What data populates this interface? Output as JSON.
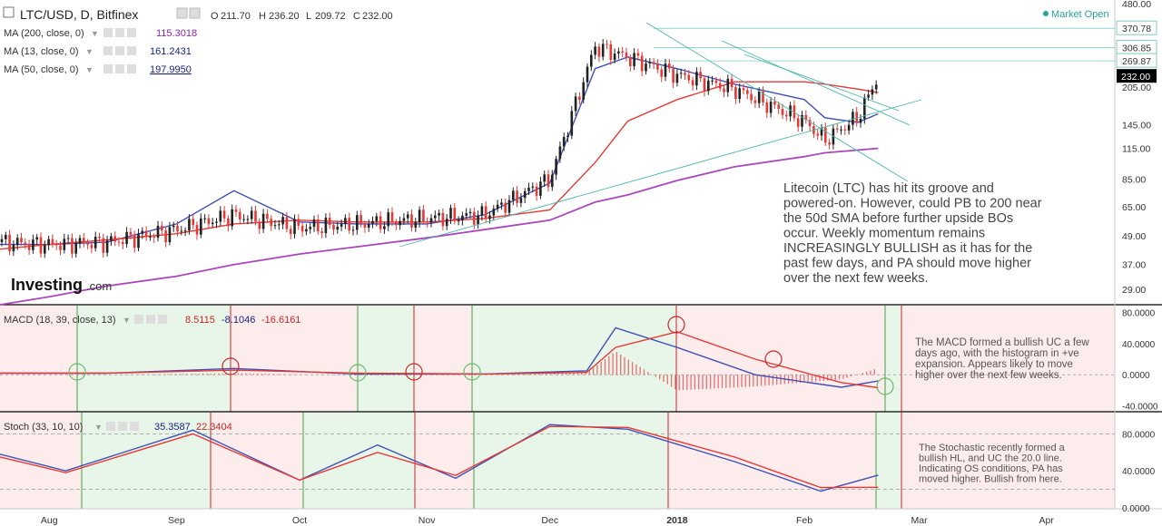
{
  "header": {
    "symbol": "LTC/USD, D, Bitfinex",
    "open_label": "O",
    "open": "211.70",
    "high_label": "H",
    "high": "236.20",
    "low_label": "L",
    "low": "209.72",
    "close_label": "C",
    "close": "232.00",
    "market_status": "Market Open"
  },
  "indicators": [
    {
      "label": "MA (200, close, 0)",
      "value": "115.3018",
      "color": "#8e24aa"
    },
    {
      "label": "MA (13, close, 0)",
      "value": "161.2431",
      "color": "#1a237e"
    },
    {
      "label": "MA (50, close, 0)",
      "value": "197.9950",
      "color": "#1a237e"
    }
  ],
  "logo": {
    "brand": "Investing",
    "suffix": ".com"
  },
  "price_axis_ticks": [
    "480.00",
    "370.78",
    "306.85",
    "269.87",
    "232.00",
    "205.00",
    "145.00",
    "115.00",
    "85.00",
    "65.00",
    "49.00",
    "37.00",
    "29.00"
  ],
  "macd": {
    "label": "MACD (18, 39, close, 13)",
    "values": [
      "8.5115",
      "-8.1046",
      "-16.6161"
    ],
    "axis_ticks": [
      "80.0000",
      "40.0000",
      "0.0000",
      "-40.0000"
    ],
    "note": "The MACD formed a bullish UC a few days ago, with the histogram in +ve expansion. Appears likely to move higher over the next few weeks."
  },
  "stoch": {
    "label": "Stoch (33, 10, 10)",
    "values": [
      "35.3587",
      "22.3404"
    ],
    "axis_ticks": [
      "80.0000",
      "40.0000",
      "0.0000"
    ],
    "note": "The Stochastic recently formed a bullish HL, and UC the 20.0 line. Indicating OS conditions, PA has moved higher. Bullish from here."
  },
  "main_note": "Litecoin (LTC) has hit its groove and powered-on. However, could PB to 200 near the 50d SMA before further upside BOs occur. Weekly momentum remains INCREASINGLY BULLISH as it has for the past few days, and PA should move higher over the next few weeks.",
  "time_axis": [
    "Aug",
    "Sep",
    "Oct",
    "Nov",
    "Dec",
    "2018",
    "Feb",
    "Mar",
    "Apr"
  ],
  "colors": {
    "up": "#222222",
    "down": "#e53935",
    "ma13": "#3f51b5",
    "ma50": "#e53935",
    "ma200": "#ab47bc",
    "bull_zone": "#e8f5e9",
    "bear_zone": "#fdecec",
    "last_price_bg": "#000000"
  },
  "chart_data": [
    {
      "type": "candlestick",
      "title": "LTC/USD, D, Bitfinex",
      "scale": "log",
      "ylim": [
        25,
        480
      ],
      "x": [
        "2017-07-20",
        "2017-08-01",
        "2017-08-15",
        "2017-09-01",
        "2017-09-15",
        "2017-10-01",
        "2017-10-15",
        "2017-11-01",
        "2017-11-15",
        "2017-12-01",
        "2017-12-12",
        "2017-12-20",
        "2018-01-01",
        "2018-01-15",
        "2018-02-01",
        "2018-02-06",
        "2018-02-14",
        "2018-02-19"
      ],
      "close": [
        46,
        45,
        46,
        52,
        60,
        53,
        55,
        58,
        60,
        85,
        310,
        280,
        235,
        205,
        150,
        125,
        155,
        232
      ],
      "series": [
        {
          "name": "MA (13, close, 0)",
          "values": [
            45,
            45,
            46,
            55,
            76,
            56,
            55,
            55,
            60,
            82,
            250,
            280,
            250,
            215,
            185,
            155,
            148,
            161
          ]
        },
        {
          "name": "MA (50, close, 0)",
          "values": [
            43,
            45,
            47,
            50,
            55,
            57,
            56,
            56,
            58,
            63,
            100,
            150,
            185,
            220,
            220,
            215,
            205,
            198
          ]
        },
        {
          "name": "MA (200, close, 0)",
          "values": [
            25,
            27,
            30,
            33,
            37,
            41,
            44,
            48,
            52,
            57,
            68,
            73,
            84,
            96,
            106,
            110,
            113,
            115
          ]
        }
      ],
      "last_price": 232.0,
      "horizontal_levels": [
        370.78,
        306.85,
        269.87
      ],
      "grid": false
    },
    {
      "type": "line",
      "title": "MACD (18, 39, close, 13)",
      "ylim": [
        -45,
        85
      ],
      "x": [
        "2017-07-20",
        "2017-08-15",
        "2017-09-15",
        "2017-10-15",
        "2017-11-15",
        "2017-12-10",
        "2017-12-17",
        "2018-01-01",
        "2018-01-20",
        "2018-02-10",
        "2018-02-19"
      ],
      "series": [
        {
          "name": "MACD",
          "values": [
            2,
            2,
            8,
            1,
            1,
            5,
            60,
            35,
            0,
            -16,
            -8
          ]
        },
        {
          "name": "Signal",
          "values": [
            2,
            2,
            6,
            2,
            1,
            3,
            35,
            55,
            20,
            -10,
            -16.6
          ]
        },
        {
          "name": "Histogram",
          "values": [
            0,
            0,
            2,
            -1,
            0,
            3,
            30,
            -20,
            -15,
            -6,
            8.5
          ]
        }
      ]
    },
    {
      "type": "line",
      "title": "Stoch (33, 10, 10)",
      "ylim": [
        0,
        100
      ],
      "x": [
        "2017-07-20",
        "2017-08-05",
        "2017-09-05",
        "2017-10-01",
        "2017-10-20",
        "2017-11-08",
        "2017-12-01",
        "2017-12-20",
        "2018-01-15",
        "2018-02-05",
        "2018-02-19"
      ],
      "series": [
        {
          "name": "%K",
          "values": [
            58,
            40,
            84,
            30,
            68,
            32,
            90,
            85,
            50,
            18,
            35.4
          ]
        },
        {
          "name": "%D",
          "values": [
            55,
            38,
            80,
            30,
            60,
            35,
            88,
            87,
            55,
            22,
            22.3
          ]
        }
      ],
      "levels": [
        80,
        20
      ]
    }
  ]
}
